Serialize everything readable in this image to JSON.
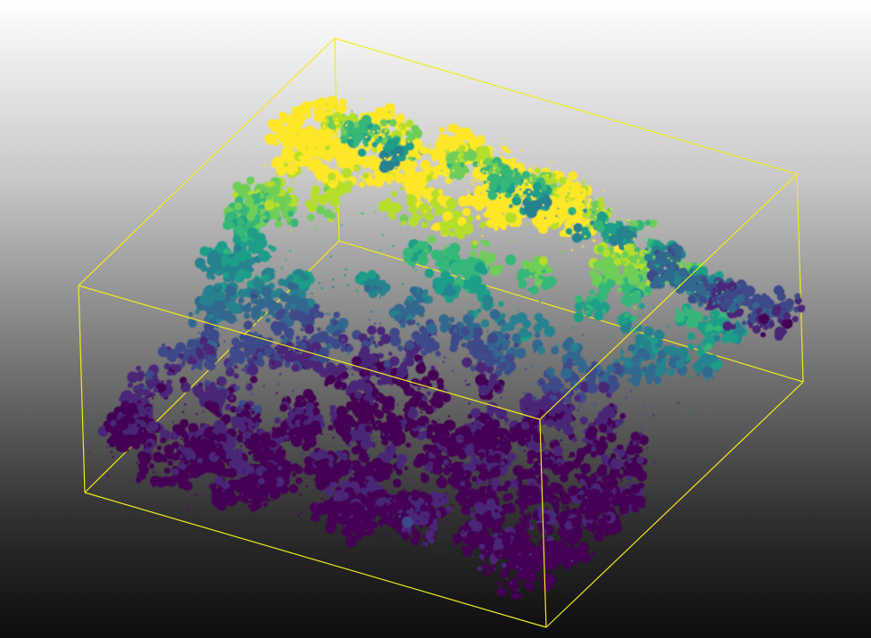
{
  "viewer": {
    "view": "3D point cloud",
    "colormap": "viridis",
    "color_by": "height"
  },
  "colors": {
    "background_top": "#ffffff",
    "background_bottom": "#0d0d0d",
    "bounding_box": "#f2ea1c",
    "viridis": [
      "#440154",
      "#482878",
      "#3e4a89",
      "#31688e",
      "#26828e",
      "#1f9e89",
      "#35b779",
      "#6ece58",
      "#b5de2b",
      "#fde725"
    ]
  }
}
